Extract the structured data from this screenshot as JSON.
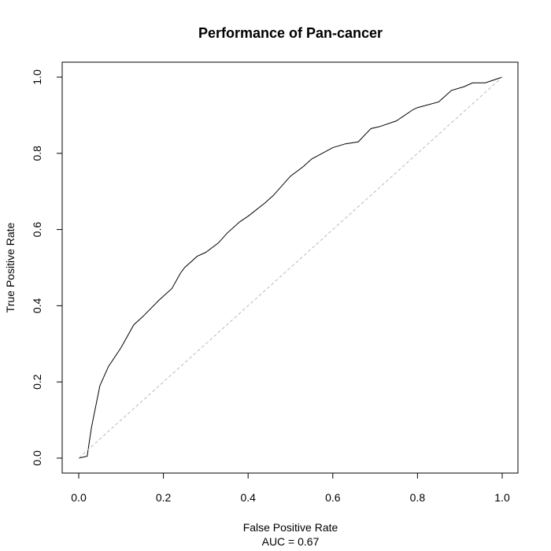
{
  "chart_data": {
    "type": "line",
    "title": "Performance of Pan-cancer",
    "xlabel": "False Positive Rate",
    "ylabel": "True Positive Rate",
    "subtitle": "AUC =  0.67",
    "xlim": [
      0,
      1
    ],
    "ylim": [
      0,
      1
    ],
    "x_ticks": [
      0.0,
      0.2,
      0.4,
      0.6,
      0.8,
      1.0
    ],
    "y_ticks": [
      0.0,
      0.2,
      0.4,
      0.6,
      0.8,
      1.0
    ],
    "x_tick_labels": [
      "0.0",
      "0.2",
      "0.4",
      "0.6",
      "0.8",
      "1.0"
    ],
    "y_tick_labels": [
      "0.0",
      "0.2",
      "0.4",
      "0.6",
      "0.8",
      "1.0"
    ],
    "grid": false,
    "legend": "none",
    "series": [
      {
        "color": "#000000",
        "x": [
          0.0,
          0.02,
          0.03,
          0.05,
          0.07,
          0.1,
          0.13,
          0.15,
          0.19,
          0.2,
          0.22,
          0.24,
          0.25,
          0.28,
          0.3,
          0.33,
          0.35,
          0.38,
          0.4,
          0.44,
          0.46,
          0.5,
          0.53,
          0.55,
          0.6,
          0.63,
          0.66,
          0.69,
          0.71,
          0.75,
          0.79,
          0.8,
          0.85,
          0.88,
          0.91,
          0.93,
          0.96,
          1.0
        ],
        "y": [
          0.0,
          0.005,
          0.08,
          0.19,
          0.24,
          0.29,
          0.35,
          0.37,
          0.415,
          0.425,
          0.445,
          0.485,
          0.5,
          0.53,
          0.54,
          0.565,
          0.59,
          0.62,
          0.635,
          0.67,
          0.69,
          0.74,
          0.765,
          0.785,
          0.815,
          0.825,
          0.83,
          0.865,
          0.87,
          0.885,
          0.915,
          0.92,
          0.935,
          0.965,
          0.975,
          0.985,
          0.985,
          1.0
        ]
      },
      {
        "color": "#bbbbbb",
        "dashed": true,
        "x": [
          0,
          1
        ],
        "y": [
          0,
          1
        ]
      }
    ]
  }
}
